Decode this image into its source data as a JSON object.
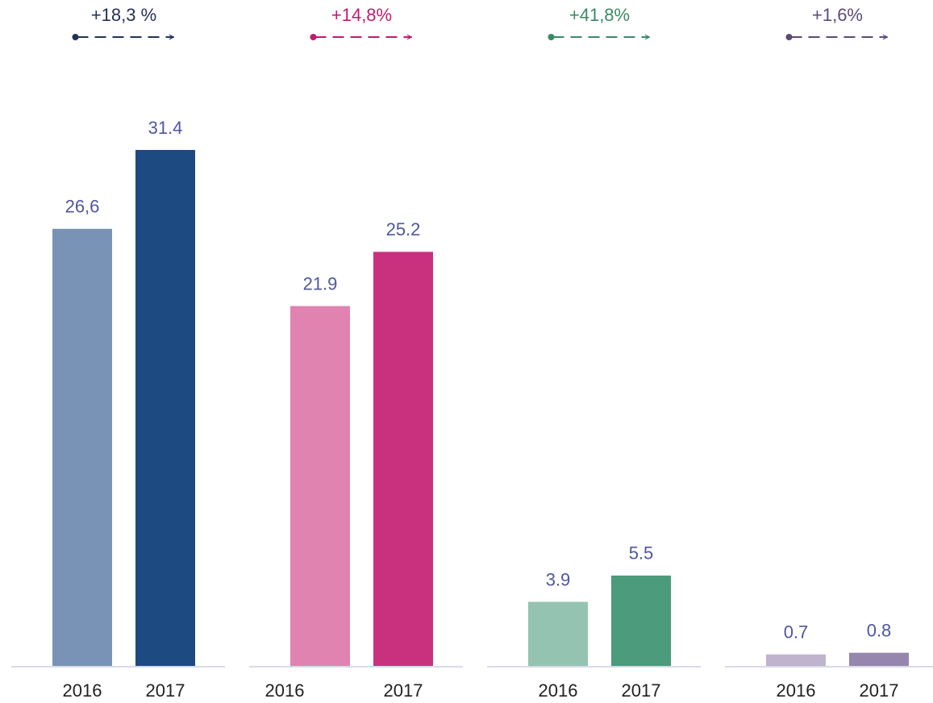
{
  "chart_data": [
    {
      "type": "bar",
      "annotation": "+18,3 %",
      "annotation_color": "#26305a",
      "categories": [
        "2016",
        "2017"
      ],
      "values": [
        26.6,
        31.4
      ],
      "value_labels": [
        "26,6",
        "31.4"
      ],
      "colors": [
        "#7893b6",
        "#1e4a82"
      ]
    },
    {
      "type": "bar",
      "annotation": "+14,8%",
      "annotation_color": "#c21a6e",
      "categories": [
        "2016",
        "2017"
      ],
      "values": [
        21.9,
        25.2
      ],
      "colors": [
        "#e083b0",
        "#c9317e"
      ]
    },
    {
      "type": "bar",
      "annotation": "+41,8%",
      "annotation_color": "#3b8a65",
      "categories": [
        "2016",
        "2017"
      ],
      "values": [
        3.9,
        5.5
      ],
      "colors": [
        "#95c3b1",
        "#4b9b7c"
      ]
    },
    {
      "type": "bar",
      "annotation": "+1,6%",
      "annotation_color": "#5c4a7a",
      "categories": [
        "2016",
        "2017"
      ],
      "values": [
        0.7,
        0.8
      ],
      "colors": [
        "#bfb3d0",
        "#9686ad"
      ]
    }
  ]
}
